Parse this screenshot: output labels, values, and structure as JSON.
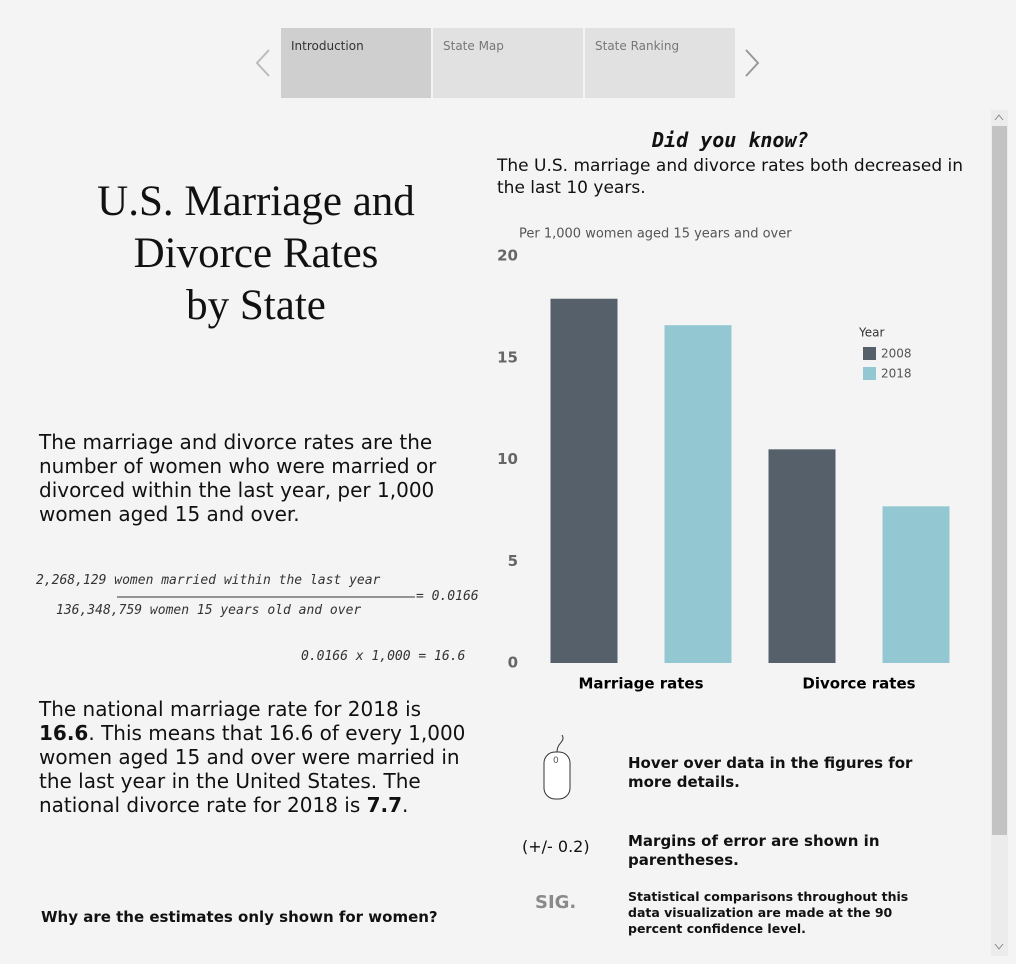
{
  "tabs": [
    "Introduction",
    "State Map",
    "State Ranking"
  ],
  "title_lines": [
    "U.S. Marriage and",
    "Divorce Rates",
    "by State"
  ],
  "definition": "The marriage and divorce rates are the number of women who were married or divorced within the last year, per 1,000 women aged 15 and over.",
  "formula": {
    "numerator": "2,268,129 women married within the last year",
    "denominator": "136,348,759 women 15 years old and over",
    "result": "= 0.0166",
    "scaled": "0.0166 x 1,000 = 16.6"
  },
  "national": {
    "part1": "The national marriage rate for 2018 is ",
    "marriage_rate": "16.6",
    "part2": ". This means that 16.6 of every 1,000 women aged 15 and over were married in the last year in the United States. The national divorce rate for 2018 is ",
    "divorce_rate": "7.7",
    "part3": "."
  },
  "question": "Why are the estimates only shown for women?",
  "did_you_know": "Did you know?",
  "statement": "The U.S. marriage and divorce rates both decreased in the last 10 years.",
  "chart_data": {
    "type": "bar",
    "subtitle": "Per 1,000 women aged 15 years and over",
    "categories": [
      "Marriage rates",
      "Divorce rates"
    ],
    "series": [
      {
        "name": "2008",
        "color": "#56606b",
        "values": [
          17.9,
          10.5
        ]
      },
      {
        "name": "2018",
        "color": "#93c8d3",
        "values": [
          16.6,
          7.7
        ]
      }
    ],
    "legend_title": "Year",
    "legend": "top-right",
    "ylim": [
      0,
      20
    ],
    "yticks": [
      0,
      5,
      10,
      15,
      20
    ],
    "grid": false
  },
  "notes": [
    {
      "icon": "0",
      "text": "Hover over data in the figures for more details."
    },
    {
      "icon": "(+/- 0.2)",
      "text": "Margins of error are shown in parentheses."
    },
    {
      "icon": "SIG.",
      "text": "Statistical comparisons throughout this data visualization are made at the 90 percent confidence level."
    }
  ]
}
